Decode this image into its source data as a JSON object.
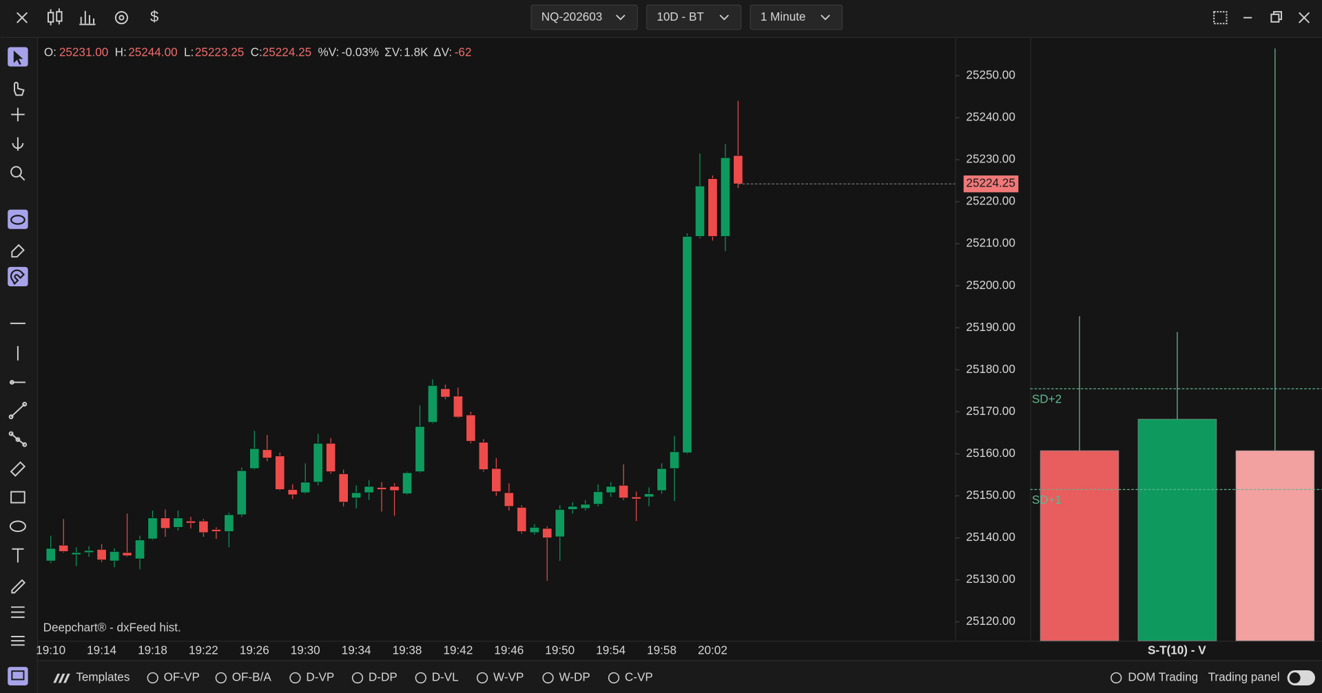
{
  "toolbar": {
    "dropdowns": [
      "NQ-202603",
      "10D - BT",
      "1 Minute"
    ]
  },
  "info_bar": [
    {
      "label": "O:",
      "value": "25231.00"
    },
    {
      "label": "H:",
      "value": "25244.00"
    },
    {
      "label": "L:",
      "value": "25223.25"
    },
    {
      "label": "C:",
      "value": "25224.25"
    },
    {
      "label": "%V:",
      "value": "-0.03%"
    },
    {
      "label": "ΣV:",
      "value": "1.8K"
    },
    {
      "label": "ΔV:",
      "value": "-62"
    }
  ],
  "watermark": "Deepchart® - dxFeed hist.",
  "bottom_bar": {
    "templates": "Templates",
    "studies": [
      "OF-VP",
      "OF-B/A",
      "D-VP",
      "D-DP",
      "D-VL",
      "W-VP",
      "W-DP",
      "C-VP"
    ],
    "right": [
      "DOM Trading",
      "Trading panel"
    ]
  },
  "chart_data": [
    {
      "type": "candlestick",
      "up_color": "#0e9a5e",
      "down_color": "#ee4b4b",
      "categories": [
        "19:10",
        null,
        null,
        null,
        "19:14",
        null,
        null,
        null,
        "19:18",
        null,
        null,
        null,
        "19:22",
        null,
        null,
        null,
        "19:26",
        null,
        null,
        null,
        "19:30",
        null,
        null,
        null,
        "19:34",
        null,
        null,
        null,
        "19:38",
        null,
        null,
        null,
        "19:42",
        null,
        null,
        null,
        "19:46",
        null,
        null,
        null,
        "19:50",
        null,
        null,
        null,
        "19:54",
        null,
        null,
        null,
        "19:58",
        null,
        null,
        null,
        "20:02",
        null,
        null
      ],
      "open": [
        25134.5,
        25138.25,
        25136,
        25136.5,
        25137.25,
        25134.5,
        25136.5,
        25135,
        25139.75,
        25144.75,
        25142.5,
        25144,
        25144,
        25142,
        25141.5,
        25145.5,
        25156.5,
        25161,
        25159.5,
        25151.5,
        25150.75,
        25153.25,
        25162.5,
        25155.25,
        25149.5,
        25150.75,
        25152,
        25152.25,
        25150.5,
        25155.75,
        25167.5,
        25175.5,
        25173.75,
        25169.25,
        25162.75,
        25156.5,
        25150.75,
        25147.25,
        25141.25,
        25142.25,
        25140.25,
        25146.75,
        25147,
        25148,
        25150.75,
        25152.5,
        25149.75,
        25149.75,
        25151.25,
        25156.5,
        25160.25,
        25211.75,
        25225.5,
        25211.75,
        25231
      ],
      "high": [
        25140.5,
        25144.5,
        25137.75,
        25138,
        25138.5,
        25137.5,
        25145.75,
        25140.5,
        25146.5,
        25146.75,
        25146.5,
        25145,
        25144.5,
        25142.5,
        25146,
        25156.75,
        25165.5,
        25164.5,
        25160.25,
        25152.75,
        25157.75,
        25164.75,
        25163.75,
        25156.25,
        25152.5,
        25153.75,
        25153.25,
        25153,
        25155.75,
        25171.5,
        25177.75,
        25176.5,
        25175.75,
        25170,
        25163.5,
        25159,
        25153,
        25147.75,
        25143.25,
        25142.75,
        25147.75,
        25148.5,
        25149,
        25152.75,
        25153.25,
        25157.5,
        25151,
        25152,
        25157.75,
        25164.25,
        25212.5,
        25231.5,
        25226.25,
        25233.75,
        25244
      ],
      "low": [
        25134,
        25136.5,
        25133.25,
        25135.5,
        25134.25,
        25133,
        25135.5,
        25132.5,
        25139.5,
        25140.25,
        25141.75,
        25142.25,
        25140.25,
        25139.75,
        25137.75,
        25145,
        25156.25,
        25158.25,
        25151.25,
        25149.25,
        25150.5,
        25152.5,
        25155.25,
        25147.5,
        25147,
        25149,
        25146.25,
        25145.25,
        25150.25,
        25155.5,
        25167.25,
        25173,
        25168.5,
        25162.5,
        25155.75,
        25150,
        25146.5,
        25141,
        25140.75,
        25129.75,
        25134.5,
        25145.75,
        25146.5,
        25147.5,
        25149.75,
        25149,
        25144,
        25147.5,
        25150.5,
        25148.75,
        25160,
        25211.25,
        25210.75,
        25208.25,
        25223.25
      ],
      "close": [
        25137.5,
        25136.75,
        25136.5,
        25137,
        25134.75,
        25136.75,
        25135.75,
        25139.5,
        25144.75,
        25142.25,
        25144.75,
        25143.5,
        25141.25,
        25141.5,
        25145.5,
        25156,
        25161.25,
        25159,
        25151.5,
        25150.25,
        25153.25,
        25162.5,
        25155.75,
        25148.5,
        25150.75,
        25152.25,
        25151.5,
        25151.25,
        25155.5,
        25166.5,
        25176.25,
        25173.5,
        25168.75,
        25163,
        25156.25,
        25151,
        25147.5,
        25141.5,
        25142.5,
        25140,
        25146.75,
        25147.5,
        25148,
        25151,
        25152.25,
        25149.5,
        25149.25,
        25150.5,
        25156.5,
        25160.5,
        25211.75,
        25223.75,
        25211.75,
        25230.5,
        25224.25
      ],
      "last_price_label": "25224.25",
      "last_price_color": "#f07878",
      "ylim": [
        25115.5,
        25259
      ],
      "yticks": [
        {
          "value": 25120,
          "label": "25120.00"
        },
        {
          "value": 25130,
          "label": "25130.00"
        },
        {
          "value": 25140,
          "label": "25140.00"
        },
        {
          "value": 25150,
          "label": "25150.00"
        },
        {
          "value": 25160,
          "label": "25160.00"
        },
        {
          "value": 25170,
          "label": "25170.00"
        },
        {
          "value": 25180,
          "label": "25180.00"
        },
        {
          "value": 25190,
          "label": "25190.00"
        },
        {
          "value": 25200,
          "label": "25200.00"
        },
        {
          "value": 25210,
          "label": "25210.00"
        },
        {
          "value": 25220,
          "label": "25220.00"
        },
        {
          "value": 25230,
          "label": "25230.00"
        },
        {
          "value": 25240,
          "label": "25240.00"
        },
        {
          "value": 25250,
          "label": "25250.00"
        }
      ],
      "grid": false
    },
    {
      "type": "bar",
      "title": "S-T(10) - V",
      "categories": [
        null,
        null,
        null
      ],
      "values": [
        25160.75,
        25168.25,
        25160.75
      ],
      "wick_high": [
        25192.75,
        25189,
        25256.5
      ],
      "colors": [
        "#e85d5d",
        "#0e9a5e",
        "#f2a0a0"
      ],
      "reference_lines": [
        {
          "label": "SD+2",
          "value": 25175.5
        },
        {
          "label": "SD+1",
          "value": 25151.5
        }
      ],
      "reference_color": "#5fb792",
      "ylim": [
        25115.5,
        25259
      ]
    }
  ]
}
